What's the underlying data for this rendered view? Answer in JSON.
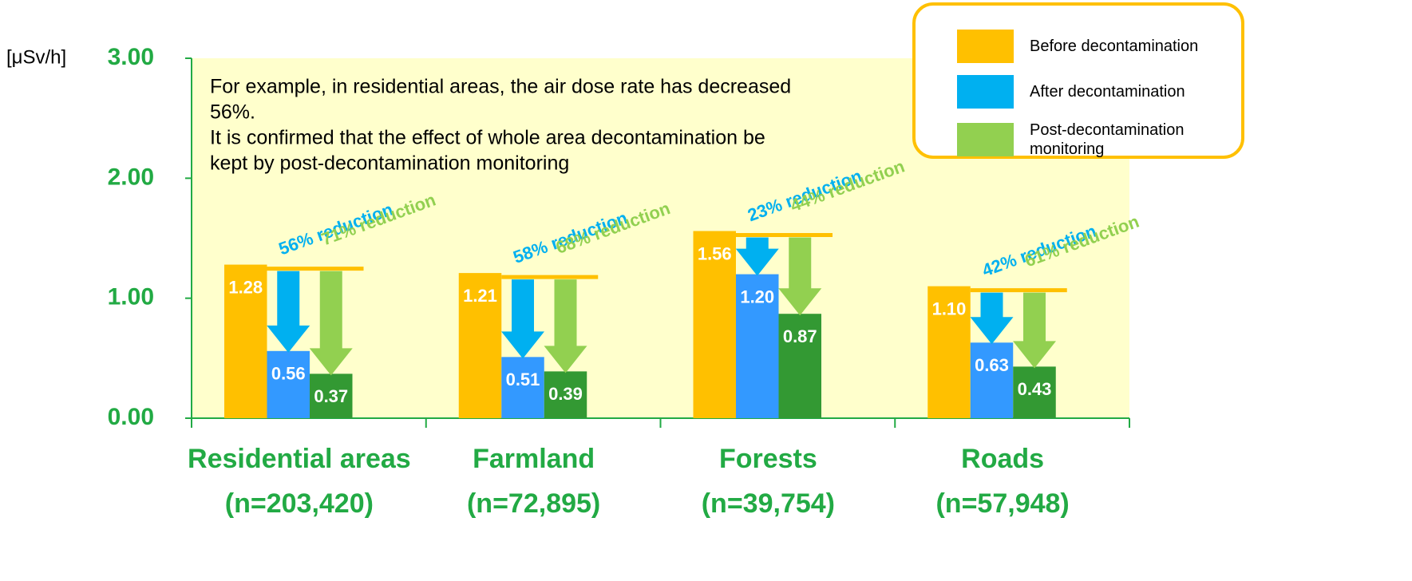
{
  "chart_data": {
    "type": "bar",
    "unit_label": "[μSv/h]",
    "categories": [
      [
        "Residential areas",
        "(n=203,420)"
      ],
      [
        "Farmland",
        "(n=72,895)"
      ],
      [
        "Forests",
        "(n=39,754)"
      ],
      [
        "Roads",
        "(n=57,948)"
      ]
    ],
    "series": [
      {
        "name": "Before decontamination",
        "color": "#FFC000",
        "legend_color": "#FFC000",
        "values": [
          1.28,
          1.21,
          1.56,
          1.1
        ],
        "value_labels": [
          "1.28",
          "1.21",
          "1.56",
          "1.10"
        ]
      },
      {
        "name": "After decontamination",
        "color": "#3399FF",
        "legend_color": "#00B0F0",
        "arrow_color": "#00B0F0",
        "values": [
          0.56,
          0.51,
          1.2,
          0.63
        ],
        "value_labels": [
          "0.56",
          "0.51",
          "1.20",
          "0.63"
        ],
        "reduction_labels": [
          "56% reduction",
          "58% reduction",
          "23% reduction",
          "42% reduction"
        ]
      },
      {
        "name": "Post-decontamination monitoring",
        "color": "#339933",
        "legend_color": "#92D050",
        "arrow_color": "#92D050",
        "values": [
          0.37,
          0.39,
          0.87,
          0.43
        ],
        "value_labels": [
          "0.37",
          "0.39",
          "0.87",
          "0.43"
        ],
        "reduction_labels": [
          "71% reduction",
          "68% reduction",
          "44% reduction",
          "61% reduction"
        ]
      }
    ],
    "ylim": [
      0,
      3
    ],
    "yticks": [
      {
        "value": 0,
        "label": "0.00"
      },
      {
        "value": 1,
        "label": "1.00"
      },
      {
        "value": 2,
        "label": "2.00"
      },
      {
        "value": 3,
        "label": "3.00"
      }
    ],
    "note": [
      "For example, in residential areas, the air dose rate has decreased",
      "56%.",
      "It is confirmed that the effect of whole area decontamination be",
      "kept by post-decontamination monitoring"
    ],
    "legend": "top-right"
  }
}
